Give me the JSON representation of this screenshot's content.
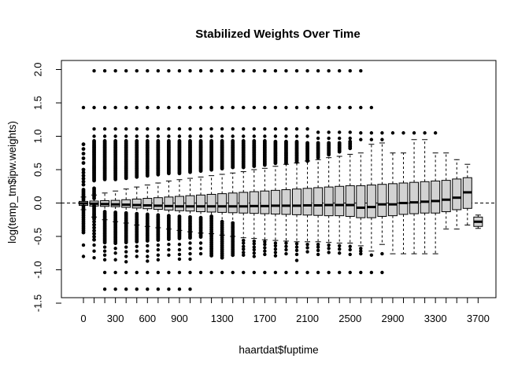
{
  "window": {
    "background": "#ffffff"
  },
  "chart_data": {
    "type": "boxplot",
    "title": "Stabilized Weights Over Time",
    "xlabel": "haartdat$fuptime",
    "ylabel": "log(temp_tm$ipw.weights)",
    "x_axis": {
      "tick_count": 38,
      "tick_step_value": 100,
      "labels": [
        {
          "k": 0,
          "label": "0"
        },
        {
          "k": 3,
          "label": "300"
        },
        {
          "k": 6,
          "label": "600"
        },
        {
          "k": 9,
          "label": "900"
        },
        {
          "k": 13,
          "label": "1300"
        },
        {
          "k": 17,
          "label": "1700"
        },
        {
          "k": 21,
          "label": "2100"
        },
        {
          "k": 25,
          "label": "2500"
        },
        {
          "k": 29,
          "label": "2900"
        },
        {
          "k": 33,
          "label": "3300"
        },
        {
          "k": 37,
          "label": "3700"
        }
      ]
    },
    "y_axis": {
      "range": [
        -1.5,
        2.0
      ],
      "tick_values": [
        -1.5,
        -1.0,
        -0.5,
        0.0,
        0.5,
        1.0,
        1.5,
        2.0
      ],
      "tick_labels": [
        "-1.5",
        "-1.0",
        "-0.5",
        "0.0",
        "0.5",
        "1.0",
        "1.5",
        "2.0"
      ]
    },
    "reference_line": {
      "v": 0,
      "style": "dashed"
    },
    "colors": {
      "box_fill": "#d2d2d2",
      "stroke": "#000000",
      "background": "#ffffff"
    },
    "outlier_rows": [
      {
        "v": 1.98,
        "from_k": 1,
        "to_k": 26
      },
      {
        "v": 1.43,
        "from_k": 0,
        "to_k": 27
      },
      {
        "v": -1.04,
        "from_k": 2,
        "to_k": 28
      },
      {
        "v": -1.29,
        "from_k": 2,
        "to_k": 10
      }
    ],
    "boxes": [
      {
        "t": 0,
        "lo": -0.1,
        "q1": -0.035,
        "med": -0.005,
        "q3": 0.025,
        "hi": 0.09,
        "above": {
          "seg": [
            [
              0.88,
              0.6,
              0.07
            ],
            [
              0.5,
              0.26,
              0.045
            ],
            [
              0.2,
              0.04,
              0.022
            ]
          ]
        },
        "below": {
          "seg": [
            [
              -0.05,
              -0.46,
              0.028
            ]
          ],
          "dots": [
            -0.63,
            -0.8
          ]
        }
      },
      {
        "t": 100,
        "lo": -0.21,
        "q1": -0.045,
        "med": -0.01,
        "q3": 0.03,
        "hi": 0.12,
        "above": {
          "dots": [
            1.11,
            1.0
          ],
          "seg": [
            [
              0.93,
              0.32,
              0.018
            ],
            [
              0.22,
              0.05,
              0.025
            ]
          ]
        },
        "below": {
          "seg": [
            [
              -0.04,
              -0.24,
              0.02
            ],
            [
              -0.28,
              -0.56,
              0.045
            ]
          ],
          "dots": [
            -0.63,
            -0.72,
            -0.82
          ]
        }
      },
      {
        "t": 200,
        "lo": -0.25,
        "q1": -0.05,
        "med": -0.015,
        "q3": 0.035,
        "hi": 0.15,
        "above": {
          "dots": [
            1.11,
            1.0
          ],
          "seg": [
            [
              0.93,
              0.34,
              0.018
            ]
          ]
        },
        "below": {
          "seg": [
            [
              -0.13,
              -0.6,
              0.022
            ]
          ],
          "dots": [
            -0.66,
            -0.72,
            -0.78,
            -0.85
          ]
        }
      },
      {
        "t": 300,
        "lo": -0.28,
        "q1": -0.055,
        "med": -0.02,
        "q3": 0.04,
        "hi": 0.18,
        "above": {
          "dots": [
            1.11,
            1.0
          ],
          "seg": [
            [
              0.93,
              0.35,
              0.018
            ]
          ]
        },
        "below": {
          "seg": [
            [
              -0.14,
              -0.62,
              0.022
            ]
          ],
          "dots": [
            -0.68,
            -0.75,
            -0.85
          ]
        }
      },
      {
        "t": 400,
        "lo": -0.3,
        "q1": -0.065,
        "med": -0.025,
        "q3": 0.05,
        "hi": 0.21,
        "above": {
          "dots": [
            1.11,
            1.0
          ],
          "seg": [
            [
              0.93,
              0.36,
              0.018
            ]
          ]
        },
        "below": {
          "seg": [
            [
              -0.15,
              -0.6,
              0.022
            ]
          ],
          "dots": [
            -0.66,
            -0.73,
            -0.8,
            -0.88
          ]
        }
      },
      {
        "t": 500,
        "lo": -0.33,
        "q1": -0.075,
        "med": -0.03,
        "q3": 0.06,
        "hi": 0.24,
        "above": {
          "dots": [
            1.11,
            1.0
          ],
          "seg": [
            [
              0.93,
              0.38,
              0.018
            ]
          ]
        },
        "below": {
          "seg": [
            [
              -0.16,
              -0.58,
              0.022
            ]
          ],
          "dots": [
            -0.65,
            -0.72,
            -0.8
          ]
        }
      },
      {
        "t": 600,
        "lo": -0.35,
        "q1": -0.085,
        "med": -0.035,
        "q3": 0.07,
        "hi": 0.27,
        "above": {
          "dots": [
            1.11,
            1.0
          ],
          "seg": [
            [
              0.93,
              0.4,
              0.018
            ]
          ]
        },
        "below": {
          "seg": [
            [
              -0.17,
              -0.57,
              0.022
            ]
          ],
          "dots": [
            -0.64,
            -0.72,
            -0.8,
            -0.87
          ]
        }
      },
      {
        "t": 700,
        "lo": -0.37,
        "q1": -0.095,
        "med": -0.04,
        "q3": 0.08,
        "hi": 0.3,
        "above": {
          "dots": [
            1.11,
            1.0
          ],
          "seg": [
            [
              0.93,
              0.41,
              0.018
            ]
          ]
        },
        "below": {
          "seg": [
            [
              -0.18,
              -0.56,
              0.022
            ]
          ],
          "dots": [
            -0.63,
            -0.7,
            -0.78,
            -0.85
          ]
        }
      },
      {
        "t": 800,
        "lo": -0.39,
        "q1": -0.105,
        "med": -0.045,
        "q3": 0.09,
        "hi": 0.33,
        "above": {
          "dots": [
            1.11,
            1.0
          ],
          "seg": [
            [
              0.93,
              0.43,
              0.018
            ]
          ]
        },
        "below": {
          "seg": [
            [
              -0.19,
              -0.55,
              0.022
            ]
          ],
          "dots": [
            -0.62,
            -0.7,
            -0.78
          ]
        }
      },
      {
        "t": 900,
        "lo": -0.41,
        "q1": -0.115,
        "med": -0.05,
        "q3": 0.1,
        "hi": 0.35,
        "above": {
          "dots": [
            1.11,
            1.0
          ],
          "seg": [
            [
              0.93,
              0.44,
              0.018
            ]
          ]
        },
        "below": {
          "seg": [
            [
              -0.2,
              -0.54,
              0.022
            ]
          ],
          "dots": [
            -0.62,
            -0.7,
            -0.77,
            -0.84
          ]
        }
      },
      {
        "t": 1000,
        "lo": -0.43,
        "q1": -0.12,
        "med": -0.05,
        "q3": 0.11,
        "hi": 0.37,
        "above": {
          "dots": [
            1.11,
            1.0
          ],
          "seg": [
            [
              0.93,
              0.46,
              0.018
            ]
          ]
        },
        "below": {
          "seg": [
            [
              -0.21,
              -0.53,
              0.024
            ]
          ],
          "dots": [
            -0.6,
            -0.68,
            -0.76,
            -0.84
          ]
        }
      },
      {
        "t": 1100,
        "lo": -0.45,
        "q1": -0.13,
        "med": -0.05,
        "q3": 0.12,
        "hi": 0.39,
        "above": {
          "dots": [
            1.11,
            1.0
          ],
          "seg": [
            [
              0.93,
              0.47,
              0.018
            ]
          ]
        },
        "below": {
          "seg": [
            [
              -0.22,
              -0.52,
              0.024
            ]
          ],
          "dots": [
            -0.6,
            -0.68,
            -0.76
          ]
        }
      },
      {
        "t": 1200,
        "lo": -0.46,
        "q1": -0.135,
        "med": -0.05,
        "q3": 0.13,
        "hi": 0.41,
        "above": {
          "dots": [
            1.11,
            1.0
          ],
          "seg": [
            [
              0.93,
              0.49,
              0.018
            ]
          ]
        },
        "below": {
          "seg": [
            [
              -0.2,
              -0.8,
              0.028
            ]
          ]
        }
      },
      {
        "t": 1300,
        "lo": -0.48,
        "q1": -0.14,
        "med": -0.05,
        "q3": 0.14,
        "hi": 0.43,
        "above": {
          "dots": [
            1.11,
            1.0
          ],
          "seg": [
            [
              0.93,
              0.5,
              0.018
            ]
          ]
        },
        "below": {
          "seg": [
            [
              -0.28,
              -0.82,
              0.03
            ]
          ]
        }
      },
      {
        "t": 1400,
        "lo": -0.5,
        "q1": -0.145,
        "med": -0.05,
        "q3": 0.15,
        "hi": 0.45,
        "above": {
          "dots": [
            1.11,
            1.0
          ],
          "seg": [
            [
              0.93,
              0.52,
              0.018
            ]
          ]
        },
        "below": {
          "seg": [
            [
              -0.3,
              -0.8,
              0.03
            ]
          ]
        }
      },
      {
        "t": 1500,
        "lo": -0.52,
        "q1": -0.15,
        "med": -0.05,
        "q3": 0.16,
        "hi": 0.47,
        "above": {
          "dots": [
            1.11,
            1.0
          ],
          "seg": [
            [
              0.93,
              0.53,
              0.018
            ]
          ]
        },
        "below": {
          "dots": [
            -0.56,
            -0.6,
            -0.65,
            -0.69,
            -0.74,
            -0.78
          ]
        }
      },
      {
        "t": 1600,
        "lo": -0.53,
        "q1": -0.155,
        "med": -0.045,
        "q3": 0.17,
        "hi": 0.5,
        "above": {
          "dots": [
            1.11,
            1.0
          ],
          "seg": [
            [
              0.93,
              0.55,
              0.018
            ]
          ]
        },
        "below": {
          "dots": [
            -0.57,
            -0.61,
            -0.66,
            -0.7,
            -0.75,
            -0.8
          ]
        }
      },
      {
        "t": 1700,
        "lo": -0.55,
        "q1": -0.16,
        "med": -0.045,
        "q3": 0.18,
        "hi": 0.52,
        "above": {
          "dots": [
            1.11,
            1.0
          ],
          "seg": [
            [
              0.93,
              0.56,
              0.018
            ]
          ]
        },
        "below": {
          "dots": [
            -0.58,
            -0.62,
            -0.67,
            -0.72,
            -0.77
          ]
        }
      },
      {
        "t": 1800,
        "lo": -0.56,
        "q1": -0.165,
        "med": -0.04,
        "q3": 0.19,
        "hi": 0.55,
        "above": {
          "dots": [
            1.11,
            1.0
          ],
          "seg": [
            [
              0.92,
              0.58,
              0.018
            ]
          ]
        },
        "below": {
          "dots": [
            -0.6,
            -0.64,
            -0.69,
            -0.74,
            -0.79
          ]
        }
      },
      {
        "t": 1900,
        "lo": -0.57,
        "q1": -0.17,
        "med": -0.04,
        "q3": 0.2,
        "hi": 0.58,
        "above": {
          "dots": [
            1.11,
            1.0
          ],
          "seg": [
            [
              0.92,
              0.59,
              0.018
            ]
          ]
        },
        "below": {
          "dots": [
            -0.6,
            -0.65,
            -0.7,
            -0.76
          ]
        }
      },
      {
        "t": 2000,
        "lo": -0.58,
        "q1": -0.175,
        "med": -0.04,
        "q3": 0.21,
        "hi": 0.6,
        "above": {
          "dots": [
            1.11,
            1.0
          ],
          "seg": [
            [
              0.92,
              0.61,
              0.018
            ]
          ]
        },
        "below": {
          "dots": [
            -0.61,
            -0.66,
            -0.71,
            -0.77,
            -0.86
          ]
        }
      },
      {
        "t": 2100,
        "lo": -0.58,
        "q1": -0.18,
        "med": -0.035,
        "q3": 0.22,
        "hi": 0.63,
        "above": {
          "dots": [
            1.11,
            1.0
          ],
          "seg": [
            [
              0.9,
              0.62,
              0.018
            ]
          ]
        },
        "below": {
          "dots": [
            -0.62,
            -0.67,
            -0.73
          ]
        }
      },
      {
        "t": 2200,
        "lo": -0.58,
        "q1": -0.185,
        "med": -0.035,
        "q3": 0.23,
        "hi": 0.65,
        "above": {
          "dots": [
            1.06,
            0.97
          ],
          "seg": [
            [
              0.9,
              0.68,
              0.022
            ]
          ]
        },
        "below": {
          "dots": [
            -0.62,
            -0.66,
            -0.71,
            -0.77
          ]
        }
      },
      {
        "t": 2300,
        "lo": -0.59,
        "q1": -0.19,
        "med": -0.03,
        "q3": 0.24,
        "hi": 0.68,
        "above": {
          "dots": [
            1.06,
            0.97
          ],
          "seg": [
            [
              0.9,
              0.72,
              0.022
            ]
          ]
        },
        "below": {
          "dots": [
            -0.63,
            -0.68,
            -0.74
          ]
        }
      },
      {
        "t": 2400,
        "lo": -0.6,
        "q1": -0.19,
        "med": -0.03,
        "q3": 0.25,
        "hi": 0.7,
        "above": {
          "dots": [
            1.06,
            0.97
          ],
          "seg": [
            [
              0.9,
              0.76,
              0.022
            ]
          ]
        },
        "below": {
          "dots": [
            -0.64,
            -0.69,
            -0.75
          ]
        }
      },
      {
        "t": 2500,
        "lo": -0.6,
        "q1": -0.2,
        "med": -0.03,
        "q3": 0.26,
        "hi": 0.73,
        "above": {
          "dots": [
            1.06,
            0.97
          ],
          "seg": [
            [
              0.92,
              0.8,
              0.025
            ]
          ]
        },
        "below": {
          "dots": [
            -0.65,
            -0.7,
            -0.77
          ]
        }
      },
      {
        "t": 2600,
        "lo": -0.64,
        "q1": -0.22,
        "med": -0.07,
        "q3": 0.26,
        "hi": 0.75,
        "above": {
          "dots": [
            1.05,
            0.95
          ]
        },
        "below": {
          "dots": [
            -0.68,
            -0.72,
            -0.76
          ]
        }
      },
      {
        "t": 2700,
        "lo": -0.72,
        "q1": -0.22,
        "med": -0.06,
        "q3": 0.27,
        "hi": 0.88,
        "above": {
          "dots": [
            1.05,
            0.95
          ]
        },
        "below": {
          "dots": [
            -0.78
          ]
        }
      },
      {
        "t": 2800,
        "lo": -0.62,
        "q1": -0.2,
        "med": -0.02,
        "q3": 0.28,
        "hi": 0.9,
        "above": {
          "dots": [
            1.05,
            0.95
          ]
        },
        "below": {
          "dots": [
            -0.76
          ]
        }
      },
      {
        "t": 2900,
        "lo": -0.76,
        "q1": -0.19,
        "med": -0.02,
        "q3": 0.29,
        "hi": 0.75,
        "above": {
          "dots": [
            1.05
          ]
        }
      },
      {
        "t": 3000,
        "lo": -0.76,
        "q1": -0.17,
        "med": 0.0,
        "q3": 0.3,
        "hi": 0.75,
        "above": {
          "dots": [
            1.05
          ]
        }
      },
      {
        "t": 3100,
        "lo": -0.76,
        "q1": -0.16,
        "med": 0.01,
        "q3": 0.31,
        "hi": 0.95,
        "above": {
          "dots": [
            1.05
          ]
        }
      },
      {
        "t": 3200,
        "lo": -0.76,
        "q1": -0.15,
        "med": 0.02,
        "q3": 0.32,
        "hi": 0.95,
        "above": {
          "dots": [
            1.05
          ]
        }
      },
      {
        "t": 3300,
        "lo": -0.76,
        "q1": -0.15,
        "med": 0.03,
        "q3": 0.33,
        "hi": 0.75,
        "above": {
          "dots": [
            1.05
          ]
        }
      },
      {
        "t": 3400,
        "lo": -0.39,
        "q1": -0.13,
        "med": 0.05,
        "q3": 0.34,
        "hi": 0.75
      },
      {
        "t": 3500,
        "lo": -0.39,
        "q1": -0.1,
        "med": 0.08,
        "q3": 0.36,
        "hi": 0.65
      },
      {
        "t": 3600,
        "lo": -0.33,
        "q1": -0.08,
        "med": 0.16,
        "q3": 0.38,
        "hi": 0.58
      },
      {
        "t": 3700,
        "lo": -0.38,
        "q1": -0.35,
        "med": -0.28,
        "q3": -0.21,
        "hi": -0.18
      }
    ]
  }
}
